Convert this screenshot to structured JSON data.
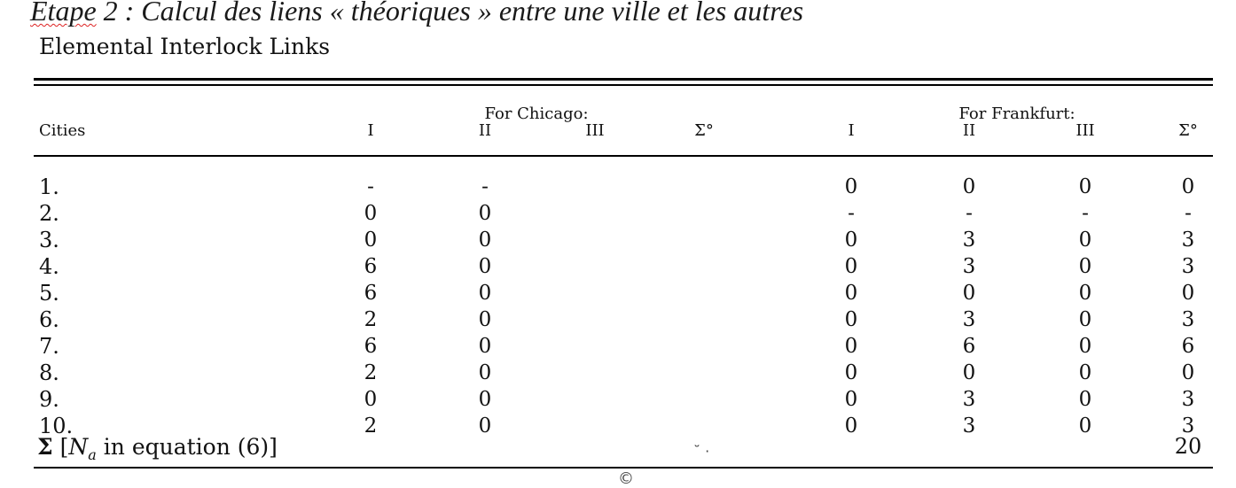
{
  "page": {
    "heading_underlined": "Etape",
    "heading_rest": " 2 : Calcul des liens « théoriques » entre une ville et les autres",
    "subtitle": "Elemental Interlock Links"
  },
  "table": {
    "cities_header": "Cities",
    "chicago_group": "For Chicago:",
    "frankfurt_group": "For Frankfurt:",
    "cols": [
      "I",
      "II",
      "III",
      "Σ°"
    ],
    "rows": [
      {
        "label": "1.",
        "chicago": [
          "-",
          "-",
          "",
          ""
        ],
        "frankfurt": [
          "0",
          "0",
          "0",
          "0"
        ]
      },
      {
        "label": "2.",
        "chicago": [
          "0",
          "0",
          "",
          ""
        ],
        "frankfurt": [
          "-",
          "-",
          "-",
          "-"
        ]
      },
      {
        "label": "3.",
        "chicago": [
          "0",
          "0",
          "",
          ""
        ],
        "frankfurt": [
          "0",
          "3",
          "0",
          "3"
        ]
      },
      {
        "label": "4.",
        "chicago": [
          "6",
          "0",
          "",
          ""
        ],
        "frankfurt": [
          "0",
          "3",
          "0",
          "3"
        ]
      },
      {
        "label": "5.",
        "chicago": [
          "6",
          "0",
          "",
          ""
        ],
        "frankfurt": [
          "0",
          "0",
          "0",
          "0"
        ]
      },
      {
        "label": "6.",
        "chicago": [
          "2",
          "0",
          "",
          ""
        ],
        "frankfurt": [
          "0",
          "3",
          "0",
          "3"
        ]
      },
      {
        "label": "7.",
        "chicago": [
          "6",
          "0",
          "",
          ""
        ],
        "frankfurt": [
          "0",
          "6",
          "0",
          "6"
        ]
      },
      {
        "label": "8.",
        "chicago": [
          "2",
          "0",
          "",
          ""
        ],
        "frankfurt": [
          "0",
          "0",
          "0",
          "0"
        ]
      },
      {
        "label": "9.",
        "chicago": [
          "0",
          "0",
          "",
          ""
        ],
        "frankfurt": [
          "0",
          "3",
          "0",
          "3"
        ]
      },
      {
        "label": "10.",
        "chicago": [
          "2",
          "0",
          "",
          ""
        ],
        "frankfurt": [
          "0",
          "3",
          "0",
          "3"
        ]
      }
    ],
    "total_sigma": "Σ",
    "total_open": "[",
    "total_var": "N",
    "total_sub": "a",
    "total_rest": " in equation (6)]",
    "total_value": "20"
  }
}
